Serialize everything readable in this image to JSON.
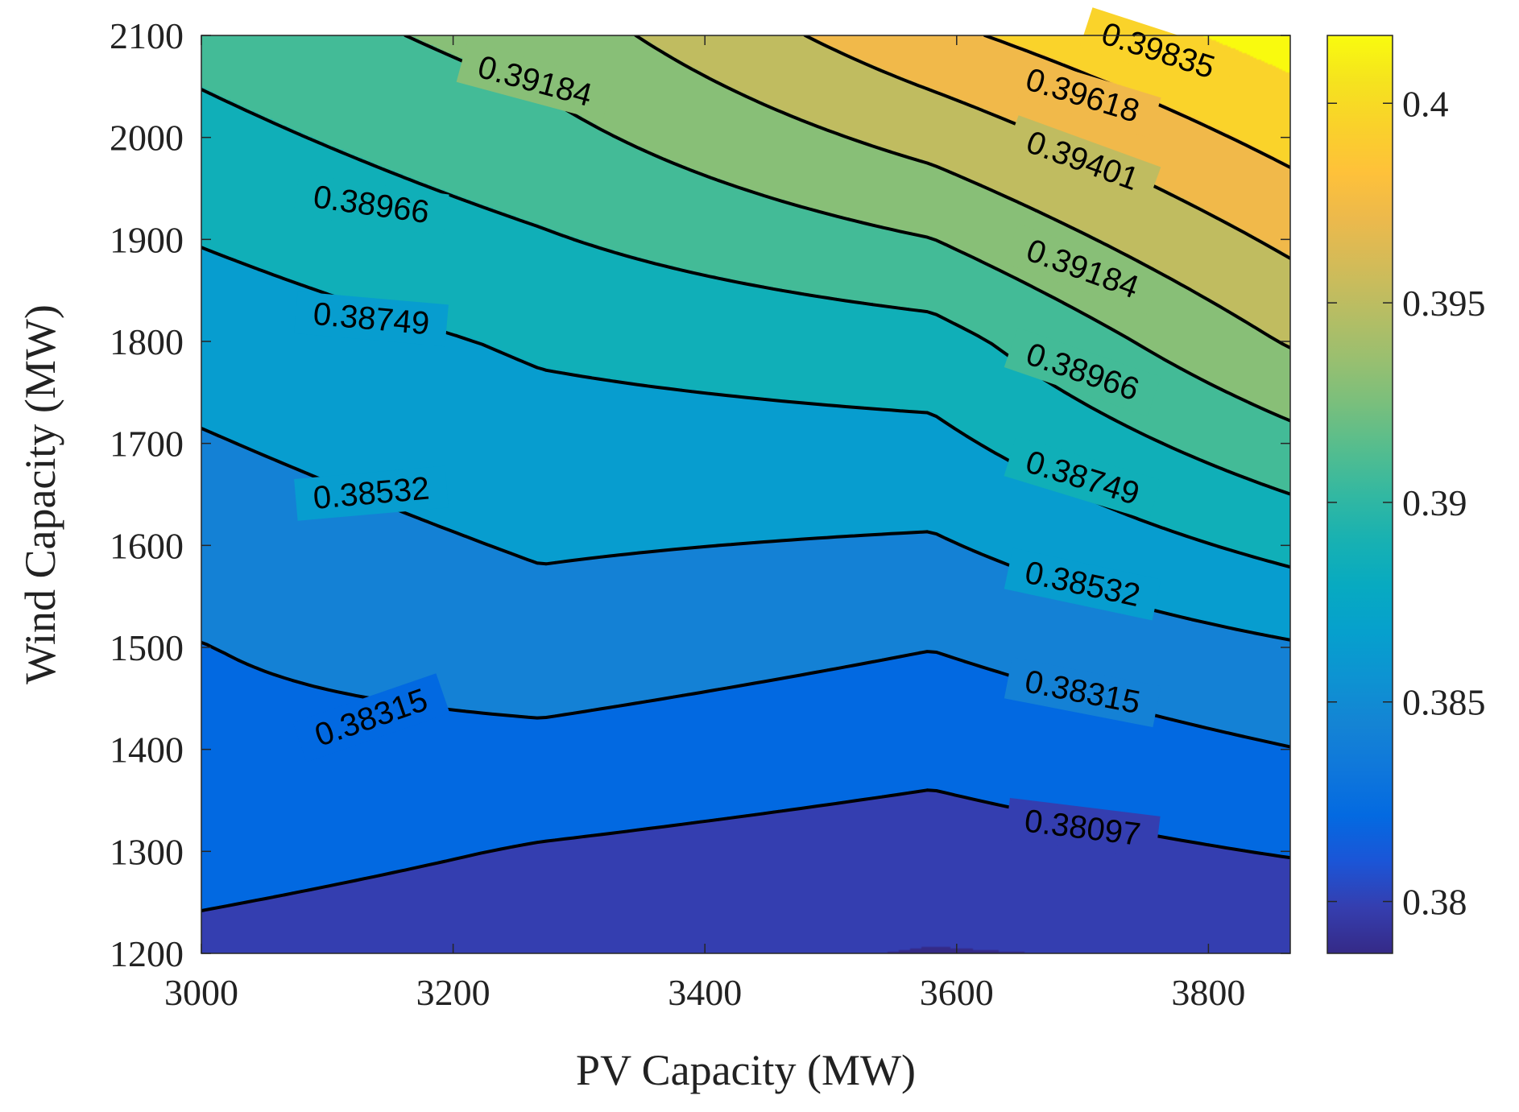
{
  "chart_data": {
    "type": "contour",
    "title": "",
    "xlabel": "PV Capacity (MW)",
    "ylabel": "Wind Capacity (MW)",
    "xlim": [
      3000,
      3865
    ],
    "ylim": [
      1200,
      2100
    ],
    "xticks": [
      3000,
      3200,
      3400,
      3600,
      3800
    ],
    "yticks": [
      1200,
      1300,
      1400,
      1500,
      1600,
      1700,
      1800,
      1900,
      2000,
      2100
    ],
    "grid": false,
    "colorbar": {
      "colormap": "parula",
      "range": [
        0.3787,
        0.4017
      ],
      "ticks": [
        0.38,
        0.385,
        0.39,
        0.395,
        0.4
      ],
      "tick_labels": [
        "0.38",
        "0.385",
        "0.39",
        "0.395",
        "0.4"
      ]
    },
    "x": [
      3000,
      3270,
      3580,
      3865
    ],
    "y": [
      1200,
      1300,
      1500,
      1800,
      2100
    ],
    "z": [
      [
        0.3803,
        0.3794,
        0.3787,
        0.379
      ],
      [
        0.3819,
        0.3808,
        0.38,
        0.3811
      ],
      [
        0.3831,
        0.3844,
        0.3832,
        0.3851
      ],
      [
        0.3862,
        0.3878,
        0.3888,
        0.3942
      ],
      [
        0.3904,
        0.3928,
        0.3978,
        0.4015
      ]
    ],
    "contour_levels": [
      0.38097,
      0.38315,
      0.38532,
      0.38749,
      0.38966,
      0.39184,
      0.39401,
      0.39618,
      0.39835
    ],
    "contour_labels": [
      {
        "text": "0.38097",
        "x": 3700,
        "y": 1323,
        "angle": 7
      },
      {
        "text": "0.38315",
        "x": 3700,
        "y": 1456,
        "angle": 11
      },
      {
        "text": "0.38315",
        "x": 3135,
        "y": 1431,
        "angle": -19
      },
      {
        "text": "0.38532",
        "x": 3700,
        "y": 1562,
        "angle": 12
      },
      {
        "text": "0.38532",
        "x": 3135,
        "y": 1651,
        "angle": -5
      },
      {
        "text": "0.38749",
        "x": 3700,
        "y": 1666,
        "angle": 17
      },
      {
        "text": "0.38749",
        "x": 3135,
        "y": 1822,
        "angle": 5
      },
      {
        "text": "0.38966",
        "x": 3700,
        "y": 1770,
        "angle": 19
      },
      {
        "text": "0.38966",
        "x": 3135,
        "y": 1934,
        "angle": 8
      },
      {
        "text": "0.39184",
        "x": 3700,
        "y": 1871,
        "angle": 20
      },
      {
        "text": "0.39184",
        "x": 3265,
        "y": 2055,
        "angle": 15
      },
      {
        "text": "0.39401",
        "x": 3700,
        "y": 1977,
        "angle": 20
      },
      {
        "text": "0.39618",
        "x": 3700,
        "y": 2041,
        "angle": 17
      },
      {
        "text": "0.39835",
        "x": 3760,
        "y": 2085,
        "angle": 18
      }
    ]
  }
}
